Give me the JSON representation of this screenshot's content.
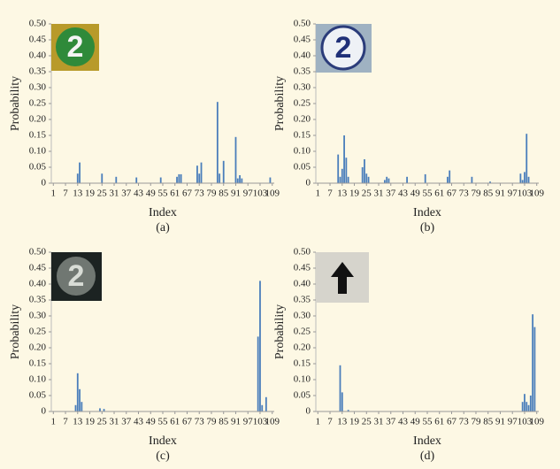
{
  "chart_data": [
    {
      "type": "bar",
      "ylabel": "Probability",
      "xlabel": "Index",
      "caption": "(a)",
      "inset_text": "2",
      "color": "#4a7ebb",
      "xlim": [
        0,
        110
      ],
      "ylim": [
        0,
        0.5
      ],
      "xticks": [
        1,
        7,
        13,
        19,
        25,
        31,
        37,
        43,
        49,
        55,
        61,
        67,
        73,
        79,
        85,
        91,
        97,
        103,
        109
      ],
      "yticks": [
        {
          "value": 0.5,
          "label": "0.50"
        },
        0.45,
        {
          "value": 0.4,
          "label": "0.40"
        },
        0.35,
        {
          "value": 0.3,
          "label": "0.30"
        },
        0.25,
        {
          "value": 0.2,
          "label": "0.20"
        },
        0.15,
        {
          "value": 0.1,
          "label": "0.10"
        },
        0.05,
        0
      ],
      "x": [
        13,
        14,
        25,
        32,
        42,
        54,
        62,
        63,
        64,
        72,
        73,
        74,
        82,
        83,
        85,
        91,
        92,
        93,
        94,
        108
      ],
      "values": [
        0.03,
        0.065,
        0.03,
        0.02,
        0.018,
        0.018,
        0.02,
        0.028,
        0.028,
        0.055,
        0.03,
        0.065,
        0.255,
        0.03,
        0.07,
        0.145,
        0.015,
        0.025,
        0.015,
        0.018
      ]
    },
    {
      "type": "bar",
      "ylabel": "Probability",
      "xlabel": "Index",
      "caption": "(b)",
      "inset_text": "2",
      "color": "#4a7ebb",
      "xlim": [
        0,
        110
      ],
      "ylim": [
        0,
        0.5
      ],
      "xticks": [
        1,
        7,
        13,
        19,
        25,
        31,
        37,
        43,
        49,
        55,
        61,
        67,
        73,
        79,
        85,
        91,
        97,
        103,
        109
      ],
      "yticks": [
        {
          "value": 0.5,
          "label": "0.50"
        },
        0.45,
        {
          "value": 0.4,
          "label": "0.40"
        },
        0.35,
        {
          "value": 0.3,
          "label": "0.30"
        },
        0.25,
        {
          "value": 0.2,
          "label": "0.20"
        },
        0.15,
        {
          "value": 0.1,
          "label": "0.10"
        },
        0.05,
        0
      ],
      "x": [
        11,
        12,
        13,
        14,
        15,
        16,
        23,
        24,
        25,
        26,
        34,
        35,
        36,
        45,
        54,
        65,
        66,
        77,
        86,
        101,
        102,
        103,
        104,
        105
      ],
      "values": [
        0.09,
        0.02,
        0.045,
        0.15,
        0.08,
        0.02,
        0.05,
        0.075,
        0.03,
        0.02,
        0.01,
        0.02,
        0.015,
        0.02,
        0.028,
        0.02,
        0.04,
        0.02,
        0.005,
        0.03,
        0.01,
        0.035,
        0.155,
        0.02
      ]
    },
    {
      "type": "bar",
      "ylabel": "Probability",
      "xlabel": "Index",
      "caption": "(c)",
      "inset_text": "2",
      "color": "#4a7ebb",
      "xlim": [
        0,
        110
      ],
      "ylim": [
        0,
        0.5
      ],
      "xticks": [
        1,
        7,
        13,
        19,
        25,
        31,
        37,
        43,
        49,
        55,
        61,
        67,
        73,
        79,
        85,
        91,
        97,
        103,
        109
      ],
      "yticks": [
        {
          "value": 0.5,
          "label": "0.50"
        },
        0.45,
        {
          "value": 0.4,
          "label": "0.40"
        },
        0.35,
        {
          "value": 0.3,
          "label": "0.30"
        },
        0.25,
        {
          "value": 0.2,
          "label": "0.20"
        },
        0.15,
        {
          "value": 0.1,
          "label": "0.10"
        },
        0.05,
        0
      ],
      "x": [
        12,
        13,
        14,
        15,
        24,
        26,
        102,
        103,
        104,
        106
      ],
      "values": [
        0.02,
        0.12,
        0.07,
        0.03,
        0.01,
        0.008,
        0.235,
        0.41,
        0.02,
        0.045
      ]
    },
    {
      "type": "bar",
      "ylabel": "Probability",
      "xlabel": "Index",
      "caption": "(d)",
      "color": "#4a7ebb",
      "xlim": [
        0,
        110
      ],
      "ylim": [
        0,
        0.5
      ],
      "xticks": [
        1,
        7,
        13,
        19,
        25,
        31,
        37,
        43,
        49,
        55,
        61,
        67,
        73,
        79,
        85,
        91,
        97,
        103,
        109
      ],
      "yticks": [
        {
          "value": 0.5,
          "label": "0.50"
        },
        0.45,
        {
          "value": 0.4,
          "label": "0.40"
        },
        0.35,
        {
          "value": 0.3,
          "label": "0.30"
        },
        0.25,
        {
          "value": 0.2,
          "label": "0.20"
        },
        0.15,
        {
          "value": 0.1,
          "label": "0.10"
        },
        0.05,
        0
      ],
      "x": [
        12,
        13,
        16,
        102,
        103,
        104,
        105,
        106,
        107,
        108
      ],
      "values": [
        0.145,
        0.06,
        0.005,
        0.03,
        0.055,
        0.03,
        0.02,
        0.05,
        0.305,
        0.265
      ]
    }
  ]
}
